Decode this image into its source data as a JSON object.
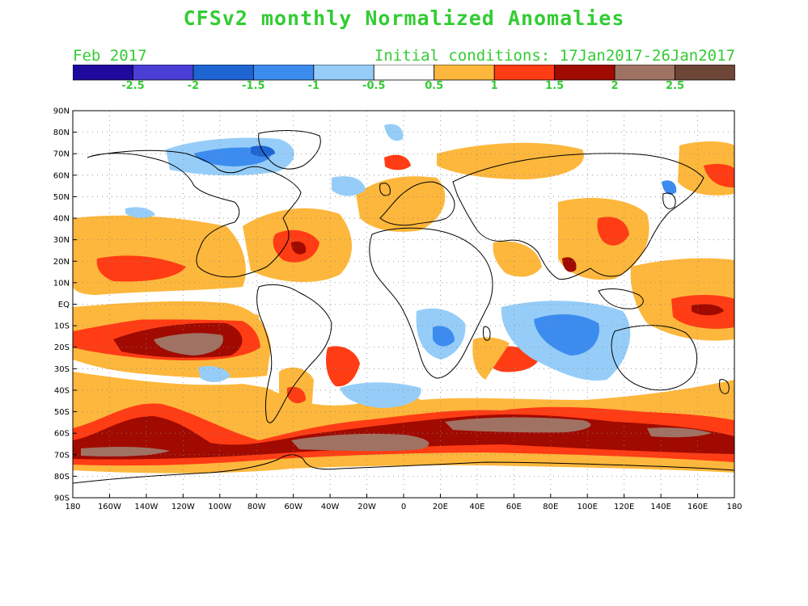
{
  "header": {
    "title": "CFSv2 monthly Normalized Anomalies",
    "month": "Feb 2017",
    "initial_conditions": "Initial conditions: 17Jan2017-26Jan2017"
  },
  "colorbar": {
    "colors": [
      "#1e0a9c",
      "#4a3ed6",
      "#1e64d2",
      "#3c8cf0",
      "#96cdf8",
      "#ffffff",
      "#fdb73c",
      "#ff3c14",
      "#a00a00",
      "#a07264",
      "#6e4638"
    ],
    "labels": [
      "-2.5",
      "-2",
      "-1.5",
      "-1",
      "-0.5",
      "0.5",
      "1",
      "1.5",
      "2",
      "2.5"
    ]
  },
  "axes": {
    "lon_labels": [
      "180",
      "160W",
      "140W",
      "120W",
      "100W",
      "80W",
      "60W",
      "40W",
      "20W",
      "0",
      "20E",
      "40E",
      "60E",
      "80E",
      "100E",
      "120E",
      "140E",
      "160E",
      "180"
    ],
    "lat_labels": [
      "90N",
      "80N",
      "70N",
      "60N",
      "50N",
      "40N",
      "30N",
      "20N",
      "10N",
      "EQ",
      "10S",
      "20S",
      "30S",
      "40S",
      "50S",
      "60S",
      "70S",
      "80S",
      "90S"
    ]
  },
  "colors": {
    "text_green": "#33cc33",
    "coast": "#000000",
    "grid_dot": "#888888"
  }
}
